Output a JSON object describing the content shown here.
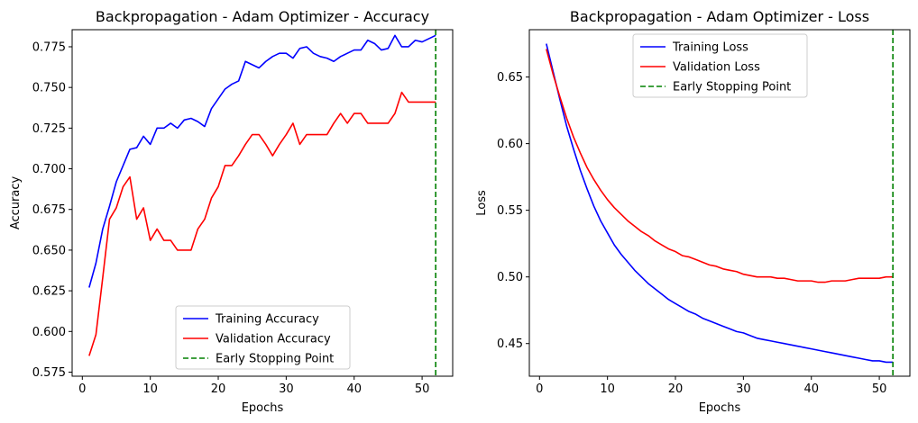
{
  "chart_data": [
    {
      "type": "line",
      "title": "Backpropagation - Adam Optimizer - Accuracy",
      "xlabel": "Epochs",
      "ylabel": "Accuracy",
      "xlim": [
        -1.5,
        54.5
      ],
      "ylim": [
        0.5725,
        0.7855
      ],
      "xticks": [
        0,
        10,
        20,
        30,
        40,
        50
      ],
      "xtick_labels": [
        "0",
        "10",
        "20",
        "30",
        "40",
        "50"
      ],
      "yticks": [
        0.575,
        0.6,
        0.625,
        0.65,
        0.675,
        0.7,
        0.725,
        0.75,
        0.775
      ],
      "ytick_labels": [
        "0.575",
        "0.600",
        "0.625",
        "0.650",
        "0.675",
        "0.700",
        "0.725",
        "0.750",
        "0.775"
      ],
      "grid": false,
      "legend_position": "bottom-center",
      "series": [
        {
          "name": "Training Accuracy",
          "color": "#0000ff",
          "style": "solid",
          "x": [
            1,
            2,
            3,
            4,
            5,
            6,
            7,
            8,
            9,
            10,
            11,
            12,
            13,
            14,
            15,
            16,
            17,
            18,
            19,
            20,
            21,
            22,
            23,
            24,
            25,
            26,
            27,
            28,
            29,
            30,
            31,
            32,
            33,
            34,
            35,
            36,
            37,
            38,
            39,
            40,
            41,
            42,
            43,
            44,
            45,
            46,
            47,
            48,
            49,
            50,
            51,
            52
          ],
          "y": [
            0.627,
            0.642,
            0.663,
            0.677,
            0.692,
            0.702,
            0.712,
            0.713,
            0.72,
            0.715,
            0.725,
            0.725,
            0.728,
            0.725,
            0.73,
            0.731,
            0.729,
            0.726,
            0.737,
            0.743,
            0.749,
            0.752,
            0.754,
            0.766,
            0.764,
            0.762,
            0.766,
            0.769,
            0.771,
            0.771,
            0.768,
            0.774,
            0.775,
            0.771,
            0.769,
            0.768,
            0.766,
            0.769,
            0.771,
            0.773,
            0.773,
            0.779,
            0.777,
            0.773,
            0.774,
            0.782,
            0.775,
            0.775,
            0.779,
            0.778,
            0.78,
            0.782
          ]
        },
        {
          "name": "Validation Accuracy",
          "color": "#ff0000",
          "style": "solid",
          "x": [
            1,
            2,
            3,
            4,
            5,
            6,
            7,
            8,
            9,
            10,
            11,
            12,
            13,
            14,
            15,
            16,
            17,
            18,
            19,
            20,
            21,
            22,
            23,
            24,
            25,
            26,
            27,
            28,
            29,
            30,
            31,
            32,
            33,
            34,
            35,
            36,
            37,
            38,
            39,
            40,
            41,
            42,
            43,
            44,
            45,
            46,
            47,
            48,
            49,
            50,
            51,
            52
          ],
          "y": [
            0.585,
            0.598,
            0.633,
            0.669,
            0.676,
            0.689,
            0.695,
            0.669,
            0.676,
            0.656,
            0.663,
            0.656,
            0.656,
            0.65,
            0.65,
            0.65,
            0.663,
            0.669,
            0.682,
            0.689,
            0.702,
            0.702,
            0.708,
            0.715,
            0.721,
            0.721,
            0.715,
            0.708,
            0.715,
            0.721,
            0.728,
            0.715,
            0.721,
            0.721,
            0.721,
            0.721,
            0.728,
            0.734,
            0.728,
            0.734,
            0.734,
            0.728,
            0.728,
            0.728,
            0.728,
            0.734,
            0.747,
            0.741,
            0.741,
            0.741,
            0.741,
            0.741
          ]
        },
        {
          "name": "Early Stopping Point",
          "color": "#008000",
          "style": "dashed",
          "vline_x": 52
        }
      ]
    },
    {
      "type": "line",
      "title": "Backpropagation - Adam Optimizer - Loss",
      "xlabel": "Epochs",
      "ylabel": "Loss",
      "xlim": [
        -1.5,
        54.5
      ],
      "ylim": [
        0.4255,
        0.6855
      ],
      "xticks": [
        0,
        10,
        20,
        30,
        40,
        50
      ],
      "xtick_labels": [
        "0",
        "10",
        "20",
        "30",
        "40",
        "50"
      ],
      "yticks": [
        0.45,
        0.5,
        0.55,
        0.6,
        0.65
      ],
      "ytick_labels": [
        "0.45",
        "0.50",
        "0.55",
        "0.60",
        "0.65"
      ],
      "grid": false,
      "legend_position": "upper-center",
      "series": [
        {
          "name": "Training Loss",
          "color": "#0000ff",
          "style": "solid",
          "x": [
            1,
            2,
            3,
            4,
            5,
            6,
            7,
            8,
            9,
            10,
            11,
            12,
            13,
            14,
            15,
            16,
            17,
            18,
            19,
            20,
            21,
            22,
            23,
            24,
            25,
            26,
            27,
            28,
            29,
            30,
            31,
            32,
            33,
            34,
            35,
            36,
            37,
            38,
            39,
            40,
            41,
            42,
            43,
            44,
            45,
            46,
            47,
            48,
            49,
            50,
            51,
            52
          ],
          "y": [
            0.675,
            0.654,
            0.633,
            0.613,
            0.596,
            0.58,
            0.566,
            0.553,
            0.542,
            0.533,
            0.524,
            0.517,
            0.511,
            0.505,
            0.5,
            0.495,
            0.491,
            0.487,
            0.483,
            0.48,
            0.477,
            0.474,
            0.472,
            0.469,
            0.467,
            0.465,
            0.463,
            0.461,
            0.459,
            0.458,
            0.456,
            0.454,
            0.453,
            0.452,
            0.451,
            0.45,
            0.449,
            0.448,
            0.447,
            0.446,
            0.445,
            0.444,
            0.443,
            0.442,
            0.441,
            0.44,
            0.439,
            0.438,
            0.437,
            0.437,
            0.436,
            0.436
          ]
        },
        {
          "name": "Validation Loss",
          "color": "#ff0000",
          "style": "solid",
          "x": [
            1,
            2,
            3,
            4,
            5,
            6,
            7,
            8,
            9,
            10,
            11,
            12,
            13,
            14,
            15,
            16,
            17,
            18,
            19,
            20,
            21,
            22,
            23,
            24,
            25,
            26,
            27,
            28,
            29,
            30,
            31,
            32,
            33,
            34,
            35,
            36,
            37,
            38,
            39,
            40,
            41,
            42,
            43,
            44,
            45,
            46,
            47,
            48,
            49,
            50,
            51,
            52
          ],
          "y": [
            0.671,
            0.652,
            0.635,
            0.619,
            0.605,
            0.593,
            0.582,
            0.573,
            0.565,
            0.558,
            0.552,
            0.547,
            0.542,
            0.538,
            0.534,
            0.531,
            0.527,
            0.524,
            0.521,
            0.519,
            0.516,
            0.515,
            0.513,
            0.511,
            0.509,
            0.508,
            0.506,
            0.505,
            0.504,
            0.502,
            0.501,
            0.5,
            0.5,
            0.5,
            0.499,
            0.499,
            0.498,
            0.497,
            0.497,
            0.497,
            0.496,
            0.496,
            0.497,
            0.497,
            0.497,
            0.498,
            0.499,
            0.499,
            0.499,
            0.499,
            0.5,
            0.5
          ]
        },
        {
          "name": "Early Stopping Point",
          "color": "#008000",
          "style": "dashed",
          "vline_x": 52
        }
      ]
    }
  ]
}
